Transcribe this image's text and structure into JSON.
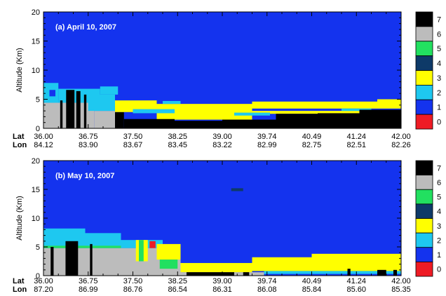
{
  "chart_data": {
    "type": "heatmap",
    "legend_placement": "right",
    "colorbar": {
      "levels": [
        "0",
        "1",
        "2",
        "3",
        "4",
        "5",
        "6",
        "7"
      ],
      "colors": {
        "0": "#ee1b24",
        "1": "#1433ee",
        "2": "#1ec8f0",
        "3": "#ffff00",
        "4": "#0e3a68",
        "5": "#22e060",
        "6": "#bcbcbc",
        "7": "#000000"
      }
    },
    "panels": [
      {
        "title": "(a) April 10, 2007",
        "ylabel": "Altitude (Km)",
        "ylim": [
          0,
          20
        ],
        "yticks": [
          "0",
          "5",
          "10",
          "15",
          "20"
        ],
        "xlim": [
          36.0,
          42.0
        ],
        "row_labels": [
          "Lat",
          "Lon"
        ],
        "lat_ticks": [
          "36.00",
          "36.75",
          "37.50",
          "38.25",
          "39.00",
          "39.74",
          "40.49",
          "41.24",
          "42.00"
        ],
        "lon_ticks": [
          "84.12",
          "83.90",
          "83.67",
          "83.45",
          "83.22",
          "82.99",
          "82.75",
          "82.51",
          "82.26"
        ],
        "layers": [
          {
            "cls": 6,
            "x0": 36.0,
            "x1": 36.85,
            "y0": 0,
            "y1": 4.4
          },
          {
            "cls": 6,
            "x0": 36.85,
            "x1": 37.2,
            "y0": 0,
            "y1": 3.0
          },
          {
            "cls": 2,
            "x0": 36.0,
            "x1": 36.25,
            "y0": 4.4,
            "y1": 7.8
          },
          {
            "cls": 2,
            "x0": 36.25,
            "x1": 36.95,
            "y0": 4.4,
            "y1": 6.8
          },
          {
            "cls": 2,
            "x0": 36.95,
            "x1": 37.25,
            "y0": 5.8,
            "y1": 7.2
          },
          {
            "cls": 2,
            "x0": 36.75,
            "x1": 37.2,
            "y0": 3.0,
            "y1": 5.8
          },
          {
            "cls": 1,
            "x0": 36.1,
            "x1": 36.2,
            "y0": 5.5,
            "y1": 6.6
          },
          {
            "cls": 7,
            "x0": 36.28,
            "x1": 36.32,
            "y0": 0,
            "y1": 4.8
          },
          {
            "cls": 7,
            "x0": 36.38,
            "x1": 36.52,
            "y0": 0,
            "y1": 6.6
          },
          {
            "cls": 7,
            "x0": 36.55,
            "x1": 36.62,
            "y0": 0,
            "y1": 6.4
          },
          {
            "cls": 7,
            "x0": 36.68,
            "x1": 36.72,
            "y0": 0,
            "y1": 5.8
          },
          {
            "cls": 7,
            "x0": 37.2,
            "x1": 37.35,
            "y0": 0,
            "y1": 2.8
          },
          {
            "cls": 3,
            "x0": 37.2,
            "x1": 37.9,
            "y0": 2.8,
            "y1": 4.8
          },
          {
            "cls": 3,
            "x0": 37.9,
            "x1": 39.5,
            "y0": 1.5,
            "y1": 4.2
          },
          {
            "cls": 3,
            "x0": 39.5,
            "x1": 41.6,
            "y0": 3.4,
            "y1": 4.6
          },
          {
            "cls": 3,
            "x0": 39.5,
            "x1": 41.6,
            "y0": 2.5,
            "y1": 3.0
          },
          {
            "cls": 3,
            "x0": 41.6,
            "x1": 42.0,
            "y0": 3.4,
            "y1": 5.0
          },
          {
            "cls": 2,
            "x0": 37.5,
            "x1": 38.2,
            "y0": 2.6,
            "y1": 3.3
          },
          {
            "cls": 2,
            "x0": 38.0,
            "x1": 38.3,
            "y0": 4.2,
            "y1": 4.7
          },
          {
            "cls": 2,
            "x0": 39.2,
            "x1": 39.8,
            "y0": 2.2,
            "y1": 2.7
          },
          {
            "cls": 2,
            "x0": 41.0,
            "x1": 41.5,
            "y0": 3.0,
            "y1": 3.4
          },
          {
            "cls": 7,
            "x0": 37.35,
            "x1": 38.2,
            "y0": 0,
            "y1": 1.6
          },
          {
            "cls": 7,
            "x0": 38.2,
            "x1": 39.0,
            "y0": 0,
            "y1": 1.3
          },
          {
            "cls": 7,
            "x0": 39.0,
            "x1": 39.9,
            "y0": 0,
            "y1": 1.5
          },
          {
            "cls": 7,
            "x0": 39.9,
            "x1": 40.6,
            "y0": 0,
            "y1": 2.5
          },
          {
            "cls": 7,
            "x0": 40.6,
            "x1": 41.3,
            "y0": 0,
            "y1": 2.6
          },
          {
            "cls": 7,
            "x0": 41.3,
            "x1": 42.0,
            "y0": 0,
            "y1": 3.2
          }
        ]
      },
      {
        "title": "(b) May 10, 2007",
        "ylabel": "Altitude (Km)",
        "ylim": [
          0,
          20
        ],
        "yticks": [
          "0",
          "5",
          "10",
          "15",
          "20"
        ],
        "xlim": [
          36.0,
          42.0
        ],
        "row_labels": [
          "Lat",
          "Lon"
        ],
        "lat_ticks": [
          "36.00",
          "36.75",
          "37.50",
          "38.25",
          "39.00",
          "39.74",
          "40.49",
          "41.24",
          "42.00"
        ],
        "lon_ticks": [
          "87.20",
          "86.99",
          "86.76",
          "86.54",
          "86.31",
          "86.08",
          "85.84",
          "85.60",
          "85.35"
        ],
        "layers": [
          {
            "cls": 6,
            "x0": 36.0,
            "x1": 38.0,
            "y0": 0,
            "y1": 4.8
          },
          {
            "cls": 6,
            "x0": 38.0,
            "x1": 38.3,
            "y0": 0,
            "y1": 2.8
          },
          {
            "cls": 6,
            "x0": 38.3,
            "x1": 39.7,
            "y0": 0,
            "y1": 0.6
          },
          {
            "cls": 2,
            "x0": 36.0,
            "x1": 36.7,
            "y0": 4.8,
            "y1": 8.2
          },
          {
            "cls": 2,
            "x0": 36.7,
            "x1": 37.3,
            "y0": 4.8,
            "y1": 7.4
          },
          {
            "cls": 2,
            "x0": 37.3,
            "x1": 38.0,
            "y0": 4.8,
            "y1": 6.2
          },
          {
            "cls": 5,
            "x0": 36.0,
            "x1": 37.3,
            "y0": 4.8,
            "y1": 5.2
          },
          {
            "cls": 3,
            "x0": 37.55,
            "x1": 37.75,
            "y0": 2.5,
            "y1": 6.2
          },
          {
            "cls": 5,
            "x0": 37.6,
            "x1": 37.68,
            "y0": 2.5,
            "y1": 6.2
          },
          {
            "cls": 0,
            "x0": 37.78,
            "x1": 37.88,
            "y0": 4.8,
            "y1": 6.0
          },
          {
            "cls": 3,
            "x0": 37.9,
            "x1": 38.3,
            "y0": 2.8,
            "y1": 5.5
          },
          {
            "cls": 5,
            "x0": 37.95,
            "x1": 38.25,
            "y0": 1.2,
            "y1": 2.8
          },
          {
            "cls": 7,
            "x0": 36.12,
            "x1": 36.17,
            "y0": 0,
            "y1": 5.0
          },
          {
            "cls": 7,
            "x0": 36.37,
            "x1": 36.58,
            "y0": 0,
            "y1": 6.0
          },
          {
            "cls": 7,
            "x0": 36.78,
            "x1": 36.82,
            "y0": 0,
            "y1": 5.5
          },
          {
            "cls": 3,
            "x0": 38.3,
            "x1": 39.5,
            "y0": 0.6,
            "y1": 2.2
          },
          {
            "cls": 3,
            "x0": 39.5,
            "x1": 40.5,
            "y0": 0.8,
            "y1": 3.2
          },
          {
            "cls": 3,
            "x0": 40.5,
            "x1": 42.0,
            "y0": 0.8,
            "y1": 3.8
          },
          {
            "cls": 2,
            "x0": 39.7,
            "x1": 42.0,
            "y0": 0.3,
            "y1": 0.8
          },
          {
            "cls": 7,
            "x0": 38.4,
            "x1": 39.2,
            "y0": 0,
            "y1": 0.6
          },
          {
            "cls": 7,
            "x0": 39.35,
            "x1": 39.45,
            "y0": 0,
            "y1": 0.6
          },
          {
            "cls": 7,
            "x0": 41.1,
            "x1": 41.15,
            "y0": 0,
            "y1": 1.2
          },
          {
            "cls": 7,
            "x0": 41.6,
            "x1": 41.75,
            "y0": 0,
            "y1": 1.0
          },
          {
            "cls": 7,
            "x0": 41.87,
            "x1": 41.93,
            "y0": 0,
            "y1": 1.0
          },
          {
            "cls": 4,
            "x0": 39.15,
            "x1": 39.35,
            "y0": 14.7,
            "y1": 15.2
          }
        ]
      }
    ]
  }
}
